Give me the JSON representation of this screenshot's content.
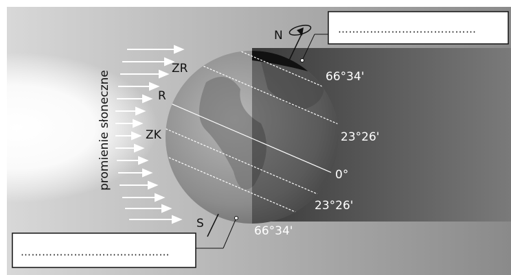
{
  "sunlight_label": "promienie słoneczne",
  "poles": {
    "north": "N",
    "south": "S"
  },
  "zone_labels": [
    "ZR",
    "R",
    "ZK"
  ],
  "latitude_labels": [
    "66°34'",
    "23°26'",
    "0°",
    "23°26'",
    "66°34'"
  ],
  "answer_boxes": [
    "…………………………………",
    "……………………………………"
  ]
}
